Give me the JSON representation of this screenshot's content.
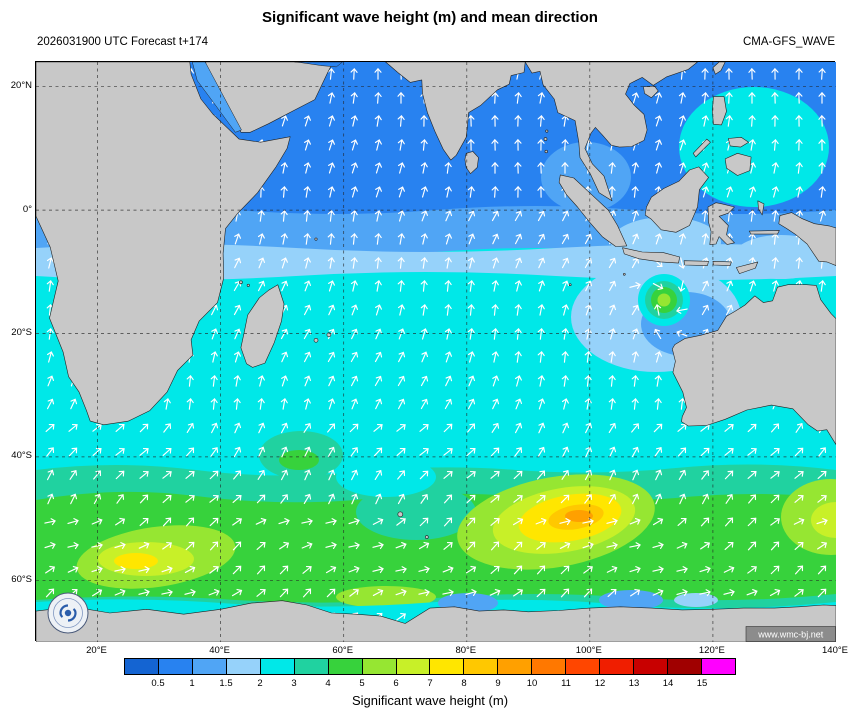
{
  "header": {
    "title": "Significant wave height (m) and mean direction",
    "subtitle_left": "2026031900 UTC Forecast t+174",
    "subtitle_right": "CMA-GFS_WAVE"
  },
  "map": {
    "watermark": "www.wmc-bj.net",
    "logo": "wmc-beijing-typhoon-spiral-logo",
    "y_axis_labels": [
      "20°N",
      "0°",
      "20°S",
      "40°S",
      "60°S"
    ],
    "x_axis_labels": [
      "20°E",
      "40°E",
      "60°E",
      "80°E",
      "100°E",
      "120°E",
      "140°E"
    ],
    "land_color": "#c8c8c8",
    "coast_color": "#222222",
    "grid_color": "#222222",
    "arrow_color": "#ffffff"
  },
  "colorbar": {
    "caption": "Significant wave height (m)",
    "tick_labels": [
      "0.5",
      "1",
      "1.5",
      "2",
      "3",
      "4",
      "5",
      "6",
      "7",
      "8",
      "9",
      "10",
      "11",
      "12",
      "13",
      "14",
      "15"
    ],
    "segment_colors": [
      "#1464d2",
      "#2882f0",
      "#50a5f5",
      "#96d2fa",
      "#00e8e8",
      "#20d2a0",
      "#37d23c",
      "#96e632",
      "#c8f028",
      "#ffe600",
      "#ffc800",
      "#ffa000",
      "#ff7800",
      "#ff4600",
      "#f01e00",
      "#c80000",
      "#a00000",
      "#ff00ff"
    ]
  },
  "chart_data": {
    "type": "heatmap",
    "title": "Significant wave height (m) and mean direction",
    "model": "CMA-GFS_WAVE",
    "init_time": "2026031900 UTC",
    "forecast_step": "t+174",
    "region": {
      "lon_range_deg_E": [
        10,
        140
      ],
      "lat_range_deg": [
        -70,
        24
      ]
    },
    "x_ticks": [
      "20°E",
      "40°E",
      "60°E",
      "80°E",
      "100°E",
      "120°E",
      "140°E"
    ],
    "y_ticks": [
      "20°N",
      "0°",
      "20°S",
      "40°S",
      "60°S"
    ],
    "colorbar_boundaries_m": [
      0.5,
      1,
      1.5,
      2,
      3,
      4,
      5,
      6,
      7,
      8,
      9,
      10,
      11,
      12,
      13,
      14,
      15
    ],
    "colorbar_label": "Significant wave height (m)",
    "overlay": "white arrows = mean wave direction",
    "grid": "dashed graticule every 20 degrees",
    "features": [
      {
        "area": "Arabian Sea, Bay of Bengal, northern Indian Ocean",
        "wave_height_m": "0.5-1.5",
        "direction": "northward"
      },
      {
        "area": "Equatorial Indian Ocean (0-10S)",
        "wave_height_m": "1.5-2",
        "direction": "north-northeastward"
      },
      {
        "area": "South China Sea / Philippine Sea",
        "wave_height_m": "2-3",
        "direction": "northward"
      },
      {
        "area": "Tropical south Indian Ocean (10-40S)",
        "wave_height_m": "2-3",
        "direction": "north-northeastward"
      },
      {
        "area": "West of Australia shelf (100-115E, 12-28S)",
        "wave_height_m": "1.5-2",
        "direction": "variable"
      },
      {
        "area": "Tropical cyclone NW of Australia (~112E, 14.5S)",
        "wave_height_m": "4-6 in core",
        "direction": "cyclonic (clockwise)"
      },
      {
        "area": "Southern Ocean belt (42-62S)",
        "wave_height_m": "3-5",
        "direction": "northeastward"
      },
      {
        "area": "Storm SW of Australia (85-105E, 48-55S)",
        "wave_height_m": "7-10 at core (orange)",
        "direction": "east-northeastward"
      },
      {
        "area": "Storm SE of Africa (20-40E, 52-60S)",
        "wave_height_m": "5-7 at core",
        "direction": "northeastward"
      },
      {
        "area": "South of Great Australian Bight near 140E, 45-52S",
        "wave_height_m": "5-6",
        "direction": "northeastward"
      },
      {
        "area": "Antarctic coastal waters",
        "wave_height_m": "0.5-3",
        "direction": "eastward"
      }
    ]
  }
}
